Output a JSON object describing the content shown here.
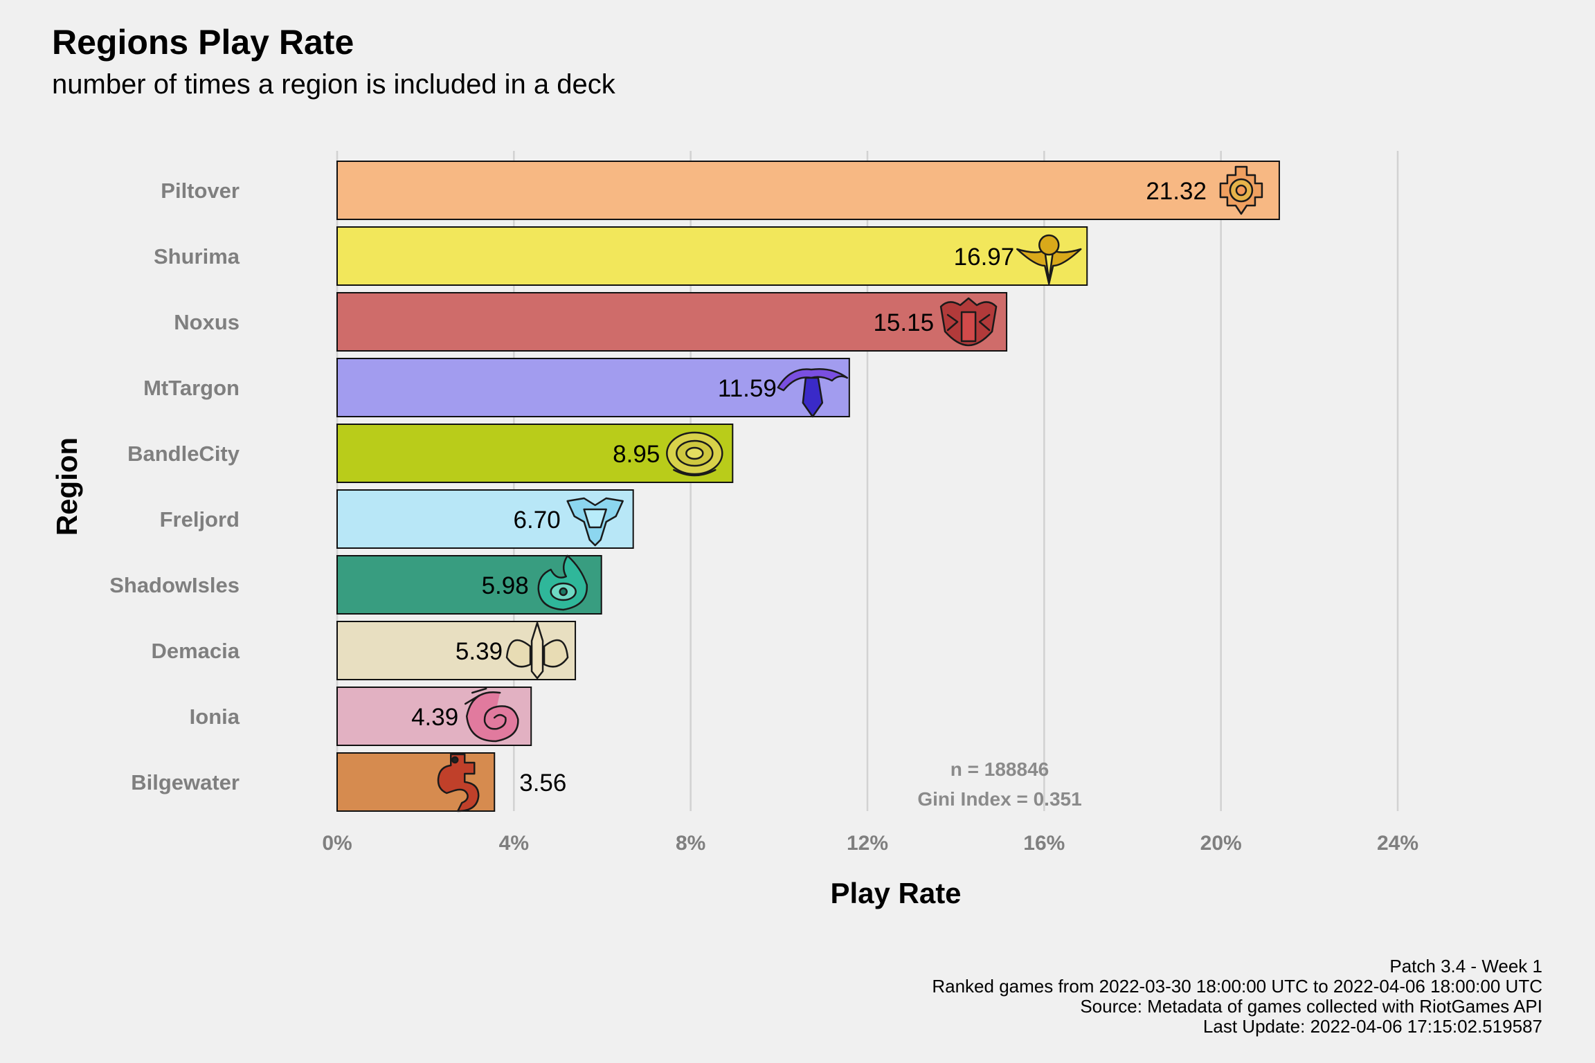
{
  "chart_data": {
    "type": "bar",
    "orientation": "horizontal",
    "title": "Regions Play Rate",
    "subtitle": "number of times a region is included in a deck",
    "xlabel": "Play Rate",
    "ylabel": "Region",
    "xlim": [
      0,
      24
    ],
    "xticks": [
      0,
      4,
      8,
      12,
      16,
      20,
      24
    ],
    "xtick_labels": [
      "0%",
      "4%",
      "8%",
      "12%",
      "16%",
      "20%",
      "24%"
    ],
    "grid": "vertical",
    "categories": [
      "Piltover",
      "Shurima",
      "Noxus",
      "MtTargon",
      "BandleCity",
      "Freljord",
      "ShadowIsles",
      "Demacia",
      "Ionia",
      "Bilgewater"
    ],
    "values": [
      21.32,
      16.97,
      15.15,
      11.59,
      8.95,
      6.7,
      5.98,
      5.39,
      4.39,
      3.56
    ],
    "value_labels": [
      "21.32",
      "16.97",
      "15.15",
      "11.59",
      "8.95",
      "6.70",
      "5.98",
      "5.39",
      "4.39",
      "3.56"
    ],
    "colors": [
      "#f7b883",
      "#f2e75b",
      "#cf6c6a",
      "#a29cef",
      "#b9cc1a",
      "#b8e7f7",
      "#389d80",
      "#e8dfc1",
      "#e2b1c2",
      "#d68b4f"
    ],
    "icons": [
      "piltover-icon",
      "shurima-icon",
      "noxus-icon",
      "mttargon-icon",
      "bandlecity-icon",
      "freljord-icon",
      "shadowisles-icon",
      "demacia-icon",
      "ionia-icon",
      "bilgewater-icon"
    ],
    "annotations": [
      "n = 188846",
      "Gini Index = 0.351"
    ]
  },
  "footer": {
    "line1": "Patch 3.4 - Week 1",
    "line2": "Ranked games from 2022-03-30 18:00:00 UTC to 2022-04-06 18:00:00 UTC",
    "line3": "Source: Metadata of games collected with RiotGames API",
    "line4": "Last Update: 2022-04-06 17:15:02.519587"
  }
}
